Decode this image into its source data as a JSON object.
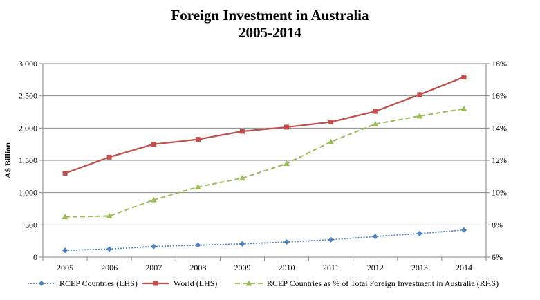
{
  "chart_data": {
    "type": "line",
    "title": [
      "Foreign Investment in Australia",
      "2005-2014"
    ],
    "ylabel_left": "A$ Billion",
    "ylabel_right": "",
    "xlabel": "",
    "categories": [
      "2005",
      "2006",
      "2007",
      "2008",
      "2009",
      "2010",
      "2011",
      "2012",
      "2013",
      "2014"
    ],
    "ylim_left": [
      0,
      3000
    ],
    "yticks_left": [
      "0",
      "500",
      "1,000",
      "1,500",
      "2,000",
      "2,500",
      "3,000"
    ],
    "ylim_right": [
      6,
      18
    ],
    "yticks_right": [
      "6%",
      "8%",
      "10%",
      "12%",
      "14%",
      "16%",
      "18%"
    ],
    "grid": "horizontal",
    "legend_position": "bottom",
    "series": [
      {
        "name": "RCEP Countries (LHS)",
        "axis": "left",
        "color": "#4F81BD",
        "style": "dotted",
        "marker": "diamond",
        "values": [
          105,
          125,
          165,
          185,
          205,
          235,
          270,
          320,
          365,
          420
        ]
      },
      {
        "name": "World (LHS)",
        "axis": "left",
        "color": "#C0504D",
        "style": "solid",
        "marker": "square",
        "values": [
          1300,
          1550,
          1750,
          1825,
          1950,
          2015,
          2095,
          2260,
          2520,
          2790
        ]
      },
      {
        "name": "RCEP Countries as % of Total Foreign Investment in Australia (RHS)",
        "axis": "right",
        "color": "#9BBB59",
        "style": "dashed",
        "marker": "triangle",
        "values": [
          8.5,
          8.55,
          9.55,
          10.35,
          10.9,
          11.8,
          13.15,
          14.25,
          14.75,
          15.2
        ]
      }
    ]
  }
}
